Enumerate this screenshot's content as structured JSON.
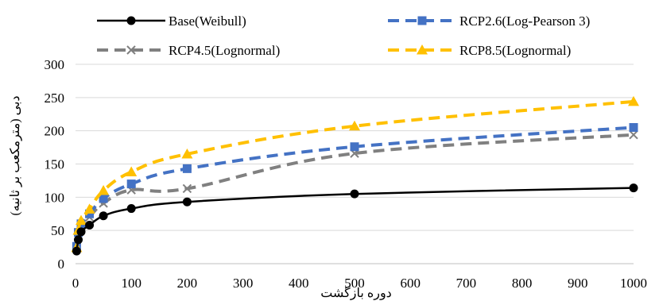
{
  "chart_data": {
    "type": "line",
    "xlabel": "دوره بازگشت",
    "ylabel": "دبی (مترمکعب بر ثانیه)",
    "xlim": [
      0,
      1000
    ],
    "ylim": [
      0,
      300
    ],
    "xticks": [
      0,
      100,
      200,
      300,
      400,
      500,
      600,
      700,
      800,
      900,
      1000
    ],
    "yticks": [
      0,
      50,
      100,
      150,
      200,
      250,
      300
    ],
    "grid": "horizontal",
    "legend_position": "top",
    "series": [
      {
        "name": "Base(Weibull)",
        "color": "#000000",
        "dash": "solid",
        "marker": "circle",
        "x": [
          2,
          5,
          10,
          25,
          50,
          100,
          200,
          500,
          1000
        ],
        "y": [
          19,
          36,
          48,
          58,
          72,
          83,
          93,
          105,
          114
        ]
      },
      {
        "name": "RCP2.6(Log-Pearson 3)",
        "color": "#4472C4",
        "dash": "dashed",
        "marker": "square",
        "x": [
          2,
          5,
          10,
          25,
          50,
          100,
          200,
          500,
          1000
        ],
        "y": [
          26,
          47,
          60,
          75,
          98,
          120,
          143,
          176,
          205
        ]
      },
      {
        "name": "RCP4.5(Lognormal)",
        "color": "#808080",
        "dash": "dashed",
        "marker": "x",
        "x": [
          2,
          5,
          10,
          25,
          50,
          100,
          200,
          500,
          1000
        ],
        "y": [
          23,
          42,
          55,
          70,
          91,
          111,
          113,
          166,
          194
        ]
      },
      {
        "name": "RCP8.5(Lognormal)",
        "color": "#FFC000",
        "dash": "dashed",
        "marker": "triangle",
        "x": [
          2,
          5,
          10,
          25,
          50,
          100,
          200,
          500,
          1000
        ],
        "y": [
          24,
          50,
          65,
          82,
          110,
          138,
          165,
          207,
          244
        ]
      }
    ]
  }
}
